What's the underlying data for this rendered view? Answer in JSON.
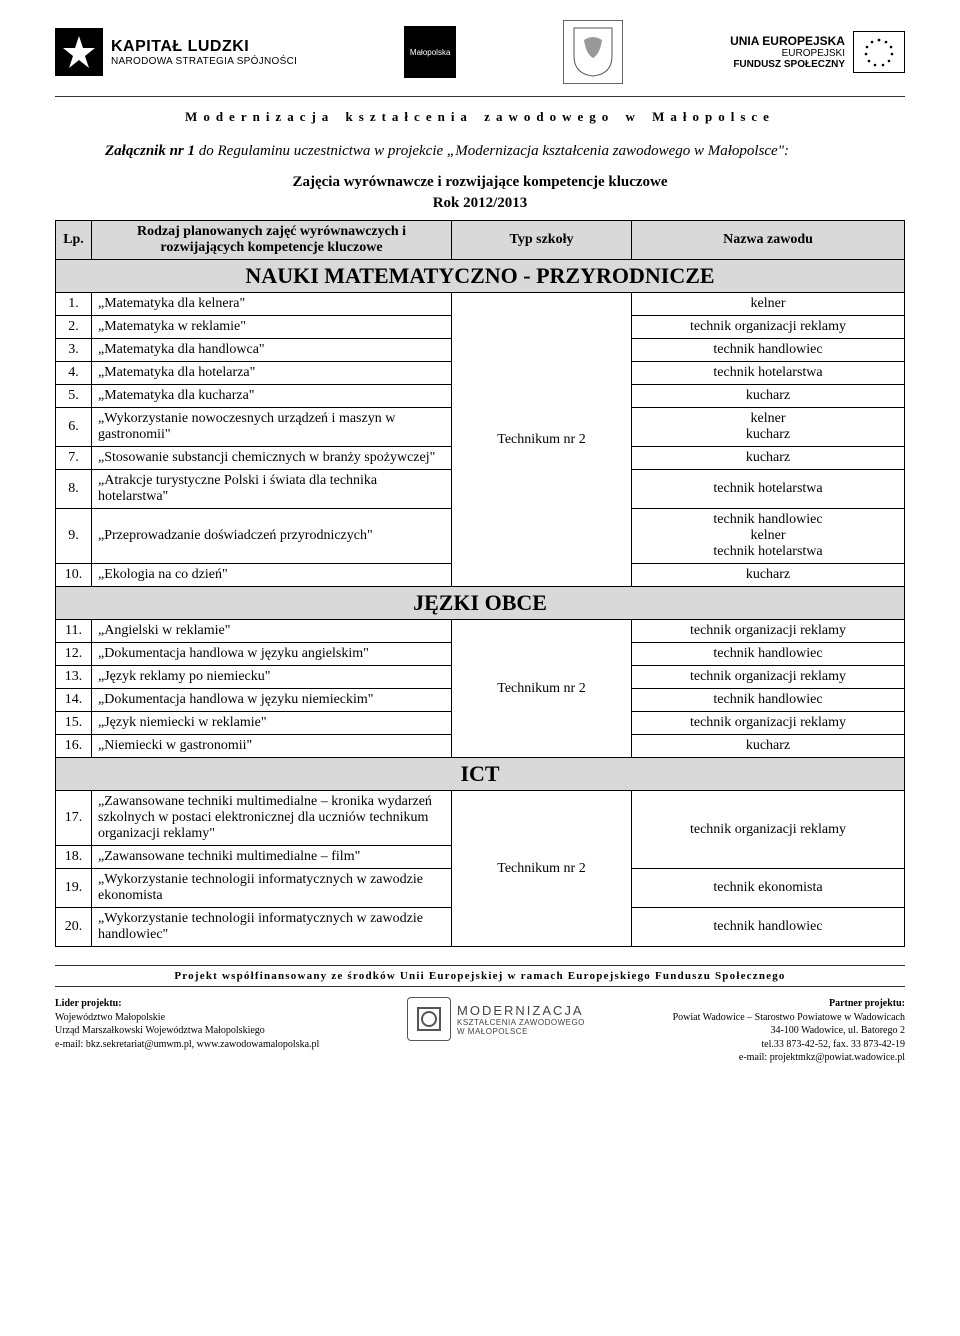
{
  "header": {
    "kapital_line1": "KAPITAŁ LUDZKI",
    "kapital_line2": "NARODOWA STRATEGIA SPÓJNOŚCI",
    "malopolska_label": "Małopolska",
    "eu_l1": "UNIA EUROPEJSKA",
    "eu_l2": "EUROPEJSKI",
    "eu_l3": "FUNDUSZ SPOŁECZNY",
    "project_title": "Modernizacja kształcenia zawodowego w Małopolsce"
  },
  "attachment": {
    "prefix": "Załącznik nr 1 ",
    "rest": "do Regulaminu uczestnictwa w projekcie „Modernizacja kształcenia zawodowego w Małopolsce\":"
  },
  "subhead": "Zajęcia wyrównawcze i rozwijające kompetencje kluczowe",
  "year": "Rok 2012/2013",
  "columns": {
    "lp": "Lp.",
    "rodzaj": "Rodzaj planowanych zajęć wyrównawczych i rozwijających kompetencje kluczowe",
    "typ": "Typ szkoły",
    "nazwa": "Nazwa zawodu"
  },
  "sections": {
    "s1": "NAUKI MATEMATYCZNO - PRZYRODNICZE",
    "s2": "JĘZKI OBCE",
    "s3": "ICT"
  },
  "typ_value": "Technikum nr 2",
  "rows_s1": [
    {
      "n": "1.",
      "d": "„Matematyka dla kelnera\"",
      "z": "kelner"
    },
    {
      "n": "2.",
      "d": "„Matematyka w reklamie\"",
      "z": "technik organizacji reklamy"
    },
    {
      "n": "3.",
      "d": "„Matematyka dla handlowca\"",
      "z": "technik handlowiec"
    },
    {
      "n": "4.",
      "d": "„Matematyka dla hotelarza\"",
      "z": "technik hotelarstwa"
    },
    {
      "n": "5.",
      "d": "„Matematyka dla kucharza\"",
      "z": "kucharz"
    },
    {
      "n": "6.",
      "d": "„Wykorzystanie nowoczesnych urządzeń i maszyn w gastronomii\"",
      "z": "kelner\nkucharz"
    },
    {
      "n": "7.",
      "d": "„Stosowanie substancji chemicznych w branży spożywczej\"",
      "z": "kucharz"
    },
    {
      "n": "8.",
      "d": "„Atrakcje turystyczne Polski i świata dla technika hotelarstwa\"",
      "z": "technik hotelarstwa"
    },
    {
      "n": "9.",
      "d": "„Przeprowadzanie doświadczeń przyrodniczych\"",
      "z": "technik handlowiec\nkelner\ntechnik hotelarstwa"
    },
    {
      "n": "10.",
      "d": "„Ekologia na co dzień\"",
      "z": "kucharz"
    }
  ],
  "rows_s2": [
    {
      "n": "11.",
      "d": "„Angielski w reklamie\"",
      "z": "technik organizacji reklamy"
    },
    {
      "n": "12.",
      "d": "„Dokumentacja handlowa w języku angielskim\"",
      "z": "technik handlowiec"
    },
    {
      "n": "13.",
      "d": "„Język reklamy po niemiecku\"",
      "z": "technik organizacji reklamy"
    },
    {
      "n": "14.",
      "d": "„Dokumentacja handlowa w języku niemieckim\"",
      "z": "technik handlowiec"
    },
    {
      "n": "15.",
      "d": "„Język niemiecki w reklamie\"",
      "z": "technik organizacji reklamy"
    },
    {
      "n": "16.",
      "d": "„Niemiecki w gastronomii\"",
      "z": "kucharz"
    }
  ],
  "rows_s3": [
    {
      "n": "17.",
      "d": "„Zawansowane techniki multimedialne – kronika wydarzeń szkolnych w postaci elektronicznej dla uczniów technikum organizacji reklamy\"",
      "z": "technik organizacji reklamy",
      "zrowspan": 2
    },
    {
      "n": "18.",
      "d": "„Zawansowane techniki multimedialne – film\""
    },
    {
      "n": "19.",
      "d": "„Wykorzystanie technologii informatycznych w zawodzie ekonomista",
      "z": "technik ekonomista"
    },
    {
      "n": "20.",
      "d": "„Wykorzystanie technologii informatycznych w zawodzie handlowiec\"",
      "z": "technik handlowiec"
    }
  ],
  "footer_bar": "Projekt współfinansowany ze środków Unii Europejskiej w ramach Europejskiego Funduszu Społecznego",
  "bottom": {
    "left": {
      "h": "Lider projektu:",
      "l1": "Województwo Małopolskie",
      "l2": "Urząd Marszałkowski Województwa Małopolskiego",
      "l3": "e-mail: bkz.sekretariat@umwm.pl, www.zawodowamalopolska.pl"
    },
    "mid": {
      "m1": "MODERNIZACJA",
      "m2": "KSZTAŁCENIA ZAWODOWEGO",
      "m3": "W MAŁOPOLSCE"
    },
    "right": {
      "h": "Partner projektu:",
      "l1": "Powiat Wadowice – Starostwo Powiatowe w Wadowicach",
      "l2": "34-100 Wadowice, ul. Batorego 2",
      "l3": "tel.33 873-42-52, fax. 33 873-42-19",
      "l4": "e-mail: projektmkz@powiat.wadowice.pl"
    }
  }
}
